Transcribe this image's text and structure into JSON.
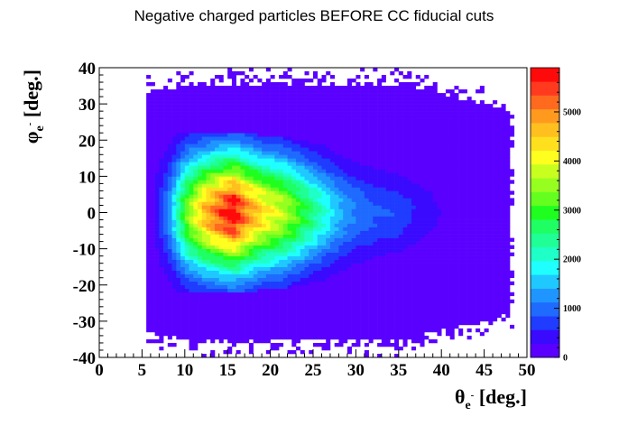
{
  "chart_data": {
    "type": "heatmap",
    "title": "Negative charged particles BEFORE CC fiducial cuts",
    "xlabel": {
      "main": "θ",
      "sub": "e",
      "sup": "-",
      "unit": " [deg.]"
    },
    "ylabel": {
      "main": "φ",
      "sub": "e",
      "sup": "-",
      "unit": " [deg.]"
    },
    "xlim": [
      0,
      50
    ],
    "ylim": [
      -40,
      40
    ],
    "zlim": [
      0,
      5900
    ],
    "x_ticks": [
      0,
      5,
      10,
      15,
      20,
      25,
      30,
      35,
      40,
      45,
      50
    ],
    "y_ticks": [
      -40,
      -30,
      -20,
      -10,
      0,
      10,
      20,
      30,
      40
    ],
    "z_ticks": [
      0,
      1000,
      2000,
      3000,
      4000,
      5000
    ],
    "x_bin_width": 0.5,
    "y_bin_width": 1,
    "density_profile": {
      "theta_rows": [
        {
          "theta": 6,
          "peak": 150,
          "phi_half_width": 22,
          "outer_half_width": 33
        },
        {
          "theta": 8,
          "peak": 1300,
          "phi_half_width": 21,
          "outer_half_width": 34
        },
        {
          "theta": 10,
          "peak": 3300,
          "phi_half_width": 22,
          "outer_half_width": 35
        },
        {
          "theta": 12,
          "peak": 4600,
          "phi_half_width": 22,
          "outer_half_width": 35
        },
        {
          "theta": 14,
          "peak": 5400,
          "phi_half_width": 22,
          "outer_half_width": 35
        },
        {
          "theta": 15.5,
          "peak": 5900,
          "phi_half_width": 22,
          "outer_half_width": 35
        },
        {
          "theta": 17,
          "peak": 5000,
          "phi_half_width": 22,
          "outer_half_width": 35
        },
        {
          "theta": 19,
          "peak": 4300,
          "phi_half_width": 21,
          "outer_half_width": 35
        },
        {
          "theta": 21,
          "peak": 3800,
          "phi_half_width": 21,
          "outer_half_width": 35
        },
        {
          "theta": 23,
          "peak": 3100,
          "phi_half_width": 20,
          "outer_half_width": 35
        },
        {
          "theta": 25,
          "peak": 2400,
          "phi_half_width": 19,
          "outer_half_width": 35
        },
        {
          "theta": 27,
          "peak": 1700,
          "phi_half_width": 18,
          "outer_half_width": 35
        },
        {
          "theta": 29,
          "peak": 1200,
          "phi_half_width": 17,
          "outer_half_width": 35
        },
        {
          "theta": 32,
          "peak": 900,
          "phi_half_width": 16,
          "outer_half_width": 35
        },
        {
          "theta": 35,
          "peak": 750,
          "phi_half_width": 15,
          "outer_half_width": 35
        },
        {
          "theta": 37,
          "peak": 500,
          "phi_half_width": 14,
          "outer_half_width": 34
        },
        {
          "theta": 40,
          "peak": 250,
          "phi_half_width": 12,
          "outer_half_width": 32
        },
        {
          "theta": 45,
          "peak": 120,
          "phi_half_width": 10,
          "outer_half_width": 30
        },
        {
          "theta": 47,
          "peak": 60,
          "phi_half_width": 8,
          "outer_half_width": 28
        }
      ]
    },
    "palette": [
      "#5a00ff",
      "#3a0aff",
      "#1f3cff",
      "#1f6aff",
      "#1f96ff",
      "#1fc8ff",
      "#1fffff",
      "#1fffc8",
      "#1fff96",
      "#1fff64",
      "#1fff1f",
      "#64ff1f",
      "#96ff1f",
      "#c8ff1f",
      "#ffff1f",
      "#ffe01f",
      "#ffc01f",
      "#ff9a1f",
      "#ff6a1f",
      "#ff3a1f",
      "#ff0a0a"
    ],
    "grid": false,
    "colorbar": "right"
  }
}
